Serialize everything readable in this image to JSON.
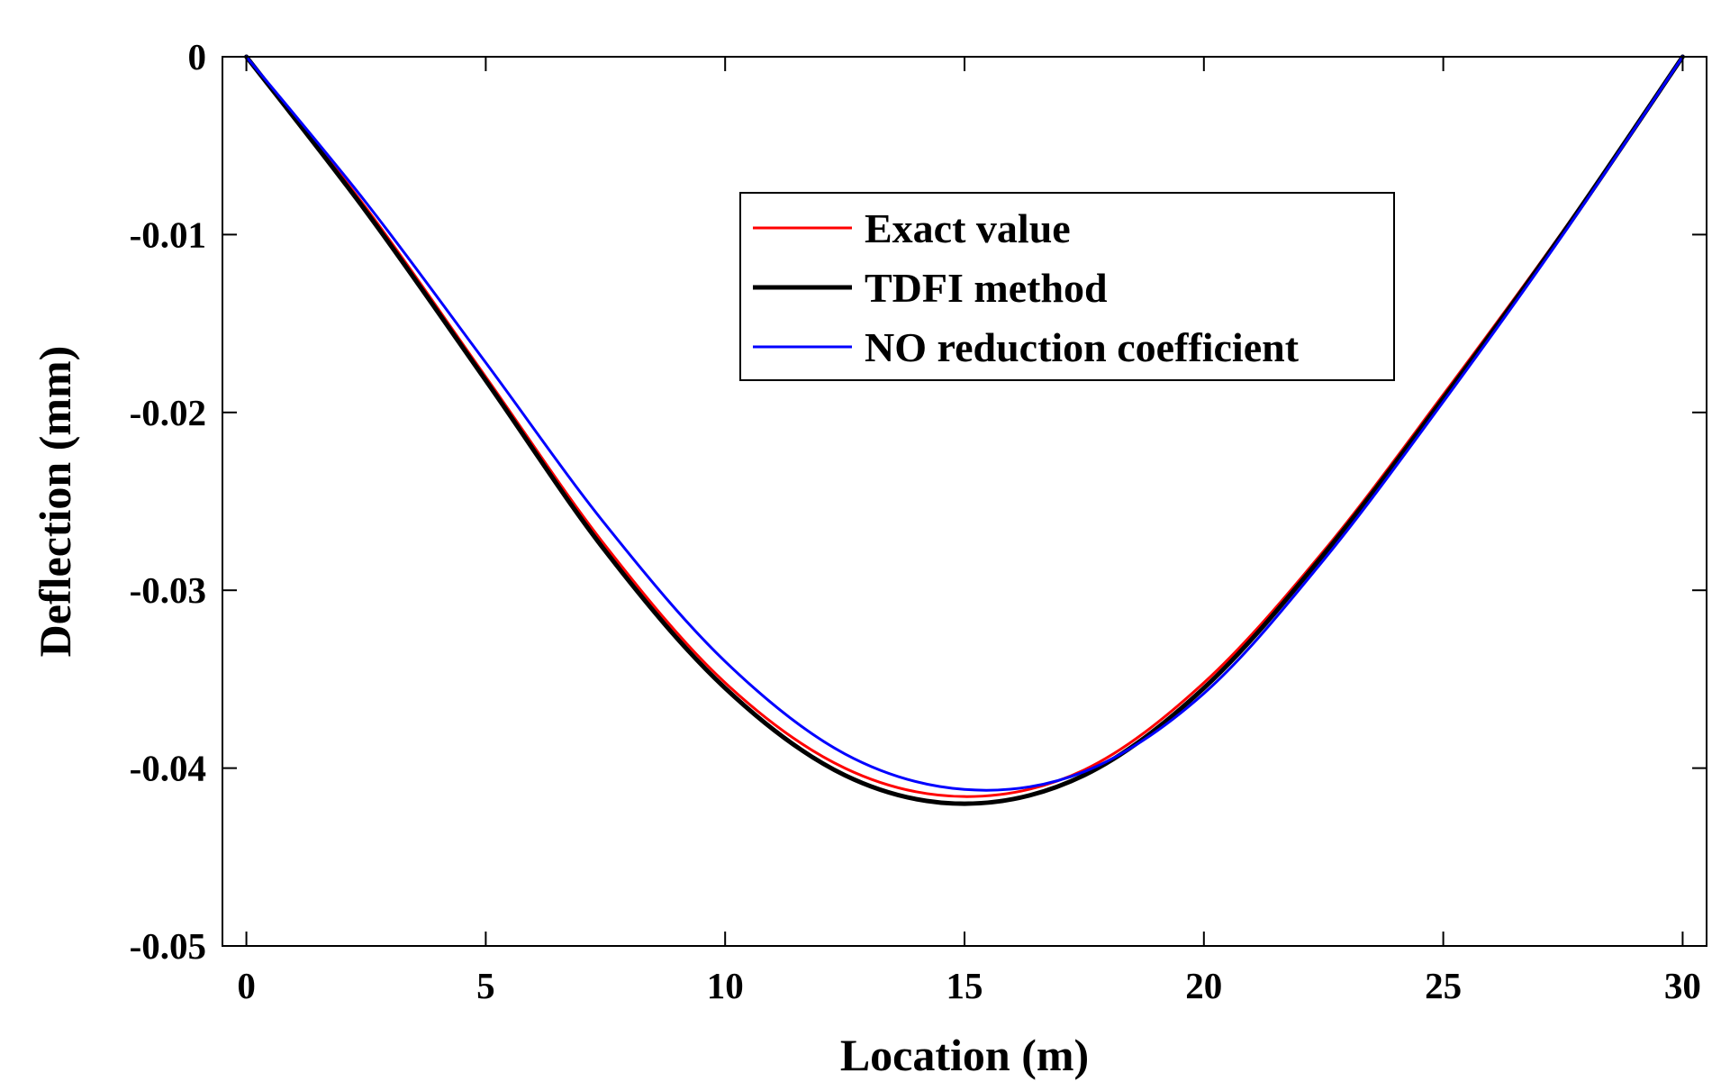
{
  "chart_data": {
    "type": "line",
    "title": "",
    "xlabel": "Location (m)",
    "ylabel": "Deflection (mm)",
    "xlim": [
      -0.5,
      30.5
    ],
    "ylim": [
      -0.05,
      0
    ],
    "xticks": [
      0,
      5,
      10,
      15,
      20,
      25,
      30
    ],
    "yticks": [
      0,
      -0.01,
      -0.02,
      -0.03,
      -0.04,
      -0.05
    ],
    "xtick_labels": [
      "0",
      "5",
      "10",
      "15",
      "20",
      "25",
      "30"
    ],
    "ytick_labels": [
      "0",
      "-0.01",
      "-0.02",
      "-0.03",
      "-0.04",
      "-0.05"
    ],
    "grid": false,
    "legend_position": "top-center",
    "series": [
      {
        "name": "Exact value",
        "color": "#ff0000",
        "x": [
          0,
          2.5,
          5,
          7.5,
          10,
          12.5,
          15,
          17.5,
          20,
          22.5,
          25,
          27.5,
          30
        ],
        "y": [
          0,
          -0.0085,
          -0.018,
          -0.0275,
          -0.0352,
          -0.04,
          -0.0416,
          -0.0401,
          -0.0352,
          -0.0278,
          -0.019,
          -0.0098,
          0
        ]
      },
      {
        "name": "TDFI method",
        "color": "#000000",
        "x": [
          0,
          2.5,
          5,
          7.5,
          10,
          12.5,
          15,
          17.5,
          20,
          22.5,
          25,
          27.5,
          30
        ],
        "y": [
          0,
          -0.0087,
          -0.0182,
          -0.0278,
          -0.0355,
          -0.0404,
          -0.042,
          -0.0404,
          -0.0355,
          -0.028,
          -0.0192,
          -0.0099,
          0
        ]
      },
      {
        "name": "NO reduction coefficient",
        "color": "#0000ff",
        "x": [
          0,
          2.5,
          5,
          7.5,
          10,
          12.5,
          15,
          17.5,
          20,
          22.5,
          25,
          27.5,
          30
        ],
        "y": [
          0,
          -0.0082,
          -0.0172,
          -0.0263,
          -0.034,
          -0.0392,
          -0.0412,
          -0.0402,
          -0.0358,
          -0.0283,
          -0.0194,
          -0.01,
          0
        ]
      }
    ]
  }
}
